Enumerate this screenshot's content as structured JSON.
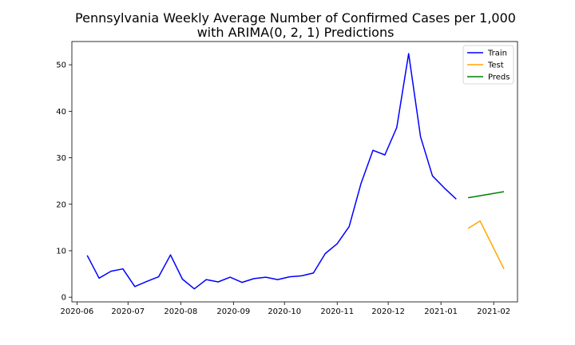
{
  "chart_data": {
    "type": "line",
    "title": [
      "Pennsylvania Weekly Average Number of Confirmed Cases per 1,000",
      "with ARIMA(0, 2, 1) Predictions"
    ],
    "xlabel": "",
    "ylabel": "",
    "x_ticks": [
      "2020-06",
      "2020-07",
      "2020-08",
      "2020-09",
      "2020-10",
      "2020-11",
      "2020-12",
      "2021-01",
      "2021-02"
    ],
    "y_ticks": [
      0,
      10,
      20,
      30,
      40,
      50
    ],
    "ylim": [
      -1,
      55
    ],
    "xlim": [
      "2020-05-29",
      "2021-02-15"
    ],
    "legend_position": "top-right",
    "grid": false,
    "series": [
      {
        "name": "Train",
        "color": "#0000ff",
        "x": [
          "2020-06-07",
          "2020-06-14",
          "2020-06-21",
          "2020-06-28",
          "2020-07-05",
          "2020-07-12",
          "2020-07-19",
          "2020-07-26",
          "2020-08-02",
          "2020-08-09",
          "2020-08-16",
          "2020-08-23",
          "2020-08-30",
          "2020-09-06",
          "2020-09-13",
          "2020-09-20",
          "2020-09-27",
          "2020-10-04",
          "2020-10-11",
          "2020-10-18",
          "2020-10-25",
          "2020-11-01",
          "2020-11-08",
          "2020-11-15",
          "2020-11-22",
          "2020-11-29",
          "2020-12-06",
          "2020-12-13",
          "2020-12-20",
          "2020-12-27",
          "2021-01-03",
          "2021-01-10"
        ],
        "values": [
          9.0,
          4.1,
          5.6,
          6.1,
          2.3,
          3.4,
          4.4,
          9.1,
          3.9,
          1.8,
          3.8,
          3.3,
          4.3,
          3.2,
          4.0,
          4.3,
          3.8,
          4.4,
          4.6,
          5.2,
          9.4,
          11.5,
          15.2,
          24.5,
          31.6,
          30.6,
          36.5,
          52.4,
          34.5,
          26.1,
          23.5,
          21.1
        ]
      },
      {
        "name": "Test",
        "color": "#ffa500",
        "x": [
          "2021-01-17",
          "2021-01-24",
          "2021-02-07"
        ],
        "values": [
          14.8,
          16.4,
          6.1
        ]
      },
      {
        "name": "Preds",
        "color": "#008000",
        "x": [
          "2021-01-17",
          "2021-02-07"
        ],
        "values": [
          21.4,
          22.7
        ]
      }
    ]
  }
}
